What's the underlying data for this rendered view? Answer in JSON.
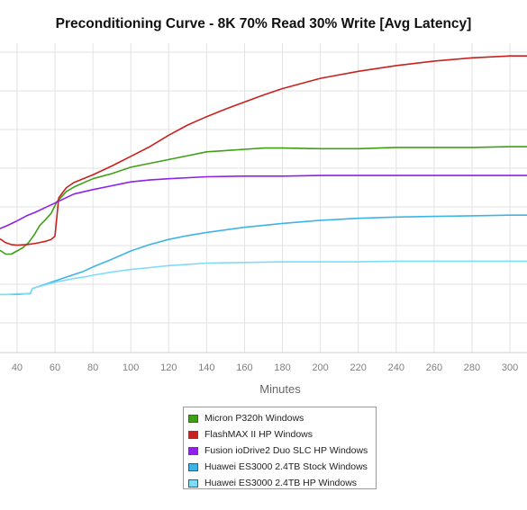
{
  "chart_data": {
    "type": "line",
    "title": "Preconditioning Curve - 8K 70% Read 30% Write [Avg Latency]",
    "xlabel": "Minutes",
    "ylabel": "",
    "x_ticks": [
      40,
      60,
      80,
      100,
      120,
      140,
      160,
      180,
      200,
      220,
      240,
      260,
      280,
      300
    ],
    "xlim": [
      31,
      309
    ],
    "grid": true,
    "legend_position": "bottom",
    "series": [
      {
        "name": "Micron P320h Windows",
        "color": "#3f9f16",
        "x": [
          31,
          34,
          37,
          40,
          43,
          46,
          49,
          52,
          55,
          58,
          61,
          66,
          70,
          80,
          90,
          100,
          110,
          120,
          130,
          140,
          150,
          160,
          170,
          180,
          200,
          220,
          240,
          260,
          280,
          300,
          309
        ],
        "y": [
          0.196,
          0.19,
          0.19,
          0.195,
          0.2,
          0.208,
          0.22,
          0.235,
          0.244,
          0.254,
          0.272,
          0.288,
          0.295,
          0.308,
          0.316,
          0.326,
          0.332,
          0.338,
          0.344,
          0.35,
          0.352,
          0.354,
          0.356,
          0.356,
          0.355,
          0.355,
          0.357,
          0.357,
          0.357,
          0.358,
          0.358
        ]
      },
      {
        "name": "FlashMAX II HP Windows",
        "color": "#c8221f",
        "x": [
          31,
          34,
          37,
          40,
          45,
          50,
          55,
          58,
          60,
          62,
          66,
          70,
          80,
          90,
          100,
          110,
          120,
          130,
          140,
          150,
          160,
          170,
          180,
          200,
          220,
          240,
          260,
          280,
          300,
          309
        ],
        "y": [
          0.214,
          0.208,
          0.205,
          0.204,
          0.205,
          0.207,
          0.21,
          0.213,
          0.218,
          0.278,
          0.294,
          0.302,
          0.314,
          0.328,
          0.343,
          0.358,
          0.376,
          0.392,
          0.405,
          0.417,
          0.428,
          0.439,
          0.449,
          0.465,
          0.476,
          0.485,
          0.492,
          0.497,
          0.5,
          0.5
        ]
      },
      {
        "name": "Fusion ioDrive2 Duo SLC HP Windows",
        "color": "#8f21e8",
        "x": [
          31,
          35,
          40,
          45,
          50,
          55,
          60,
          65,
          70,
          80,
          90,
          100,
          110,
          120,
          140,
          160,
          180,
          200,
          220,
          240,
          260,
          280,
          300,
          309
        ],
        "y": [
          0.23,
          0.235,
          0.242,
          0.25,
          0.256,
          0.263,
          0.27,
          0.277,
          0.284,
          0.291,
          0.297,
          0.303,
          0.306,
          0.308,
          0.311,
          0.312,
          0.312,
          0.313,
          0.313,
          0.313,
          0.313,
          0.313,
          0.313,
          0.313
        ]
      },
      {
        "name": "Huawei ES3000 2.4TB Stock Windows",
        "color": "#3db4e8",
        "x": [
          31,
          35,
          40,
          45,
          47,
          48,
          50,
          55,
          60,
          65,
          70,
          75,
          80,
          90,
          100,
          110,
          120,
          130,
          140,
          160,
          180,
          200,
          220,
          240,
          260,
          280,
          300,
          309
        ],
        "y": [
          0.127,
          0.127,
          0.127,
          0.128,
          0.128,
          0.136,
          0.138,
          0.143,
          0.148,
          0.153,
          0.158,
          0.163,
          0.17,
          0.182,
          0.195,
          0.205,
          0.213,
          0.219,
          0.224,
          0.232,
          0.238,
          0.243,
          0.246,
          0.248,
          0.249,
          0.25,
          0.251,
          0.251
        ]
      },
      {
        "name": "Huawei ES3000 2.4TB HP Windows",
        "color": "#7fdcf8",
        "x": [
          31,
          35,
          40,
          45,
          47,
          48,
          50,
          55,
          60,
          65,
          70,
          75,
          80,
          90,
          100,
          110,
          120,
          130,
          140,
          160,
          180,
          200,
          220,
          240,
          260,
          280,
          300,
          309
        ],
        "y": [
          0.127,
          0.127,
          0.128,
          0.128,
          0.129,
          0.136,
          0.138,
          0.142,
          0.146,
          0.149,
          0.152,
          0.154,
          0.157,
          0.162,
          0.166,
          0.169,
          0.172,
          0.174,
          0.176,
          0.177,
          0.178,
          0.178,
          0.178,
          0.179,
          0.179,
          0.179,
          0.179,
          0.179
        ]
      }
    ]
  }
}
